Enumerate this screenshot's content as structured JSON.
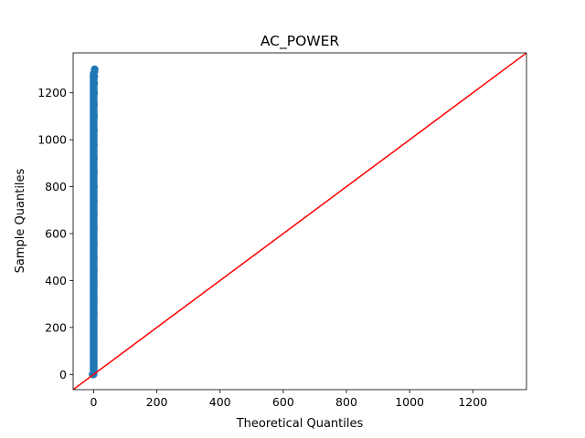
{
  "chart_data": {
    "type": "scatter",
    "title": "AC_POWER",
    "xlabel": "Theoretical Quantiles",
    "ylabel": "Sample Quantiles",
    "xlim": [
      -65,
      1370
    ],
    "ylim": [
      -65,
      1370
    ],
    "xticks": [
      0,
      200,
      400,
      600,
      800,
      1000,
      1200
    ],
    "yticks": [
      0,
      200,
      400,
      600,
      800,
      1000,
      1200
    ],
    "grid": false,
    "series": [
      {
        "kind": "points",
        "color": "#1f77b4",
        "x_range": [
          -3.5,
          3.5
        ],
        "y_range": [
          0,
          1300
        ],
        "points": [
          {
            "x": -3.5,
            "y": 0
          },
          {
            "x": -2.5,
            "y": 0
          },
          {
            "x": -1.8,
            "y": 0
          },
          {
            "x": -1.2,
            "y": 0
          },
          {
            "x": -0.7,
            "y": 0
          },
          {
            "x": -0.3,
            "y": 0
          },
          {
            "x": 0.0,
            "y": 5
          },
          {
            "x": 0.1,
            "y": 30
          },
          {
            "x": 0.15,
            "y": 60
          },
          {
            "x": 0.2,
            "y": 100
          },
          {
            "x": 0.25,
            "y": 150
          },
          {
            "x": 0.3,
            "y": 200
          },
          {
            "x": 0.35,
            "y": 260
          },
          {
            "x": 0.4,
            "y": 320
          },
          {
            "x": 0.45,
            "y": 380
          },
          {
            "x": 0.5,
            "y": 440
          },
          {
            "x": 0.55,
            "y": 500
          },
          {
            "x": 0.6,
            "y": 560
          },
          {
            "x": 0.65,
            "y": 620
          },
          {
            "x": 0.7,
            "y": 680
          },
          {
            "x": 0.75,
            "y": 740
          },
          {
            "x": 0.8,
            "y": 800
          },
          {
            "x": 0.85,
            "y": 860
          },
          {
            "x": 0.9,
            "y": 920
          },
          {
            "x": 0.95,
            "y": 980
          },
          {
            "x": 1.0,
            "y": 1040
          },
          {
            "x": 1.1,
            "y": 1100
          },
          {
            "x": 1.2,
            "y": 1150
          },
          {
            "x": 1.4,
            "y": 1200
          },
          {
            "x": 1.7,
            "y": 1240
          },
          {
            "x": 2.1,
            "y": 1270
          },
          {
            "x": 2.6,
            "y": 1290
          },
          {
            "x": 3.2,
            "y": 1300
          }
        ]
      },
      {
        "kind": "reference-line",
        "color": "#ff0000",
        "slope": 1,
        "intercept": 0
      }
    ]
  }
}
